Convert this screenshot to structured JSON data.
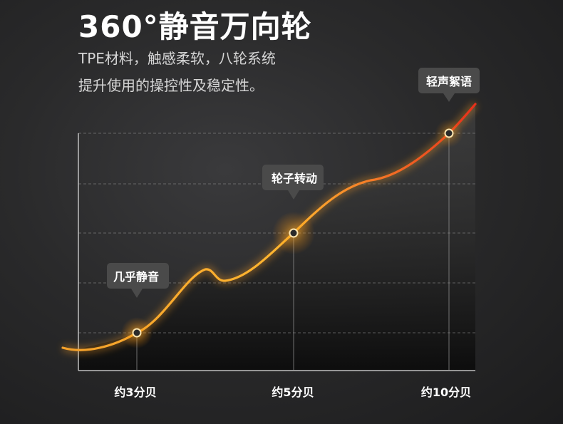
{
  "header": {
    "title": "360°静音万向轮",
    "subtitle_line1": "TPE材料，触感柔软，八轮系统",
    "subtitle_line2": "提升使用的操控性及稳定性。"
  },
  "colors": {
    "curve_start": "#f4a02a",
    "curve_mid": "#ffb630",
    "curve_end": "#e8301a",
    "callout_bg": "#4a4a4a"
  },
  "chart_data": {
    "type": "line",
    "categories": [
      "约3分贝",
      "约5分贝",
      "约10分贝"
    ],
    "x": [
      3,
      5,
      10
    ],
    "y": [
      3,
      5,
      10
    ],
    "annotations": [
      "几乎静音",
      "轮子转动",
      "轻声絮语"
    ],
    "grid": true,
    "title": "",
    "xlabel": "",
    "ylabel": ""
  }
}
